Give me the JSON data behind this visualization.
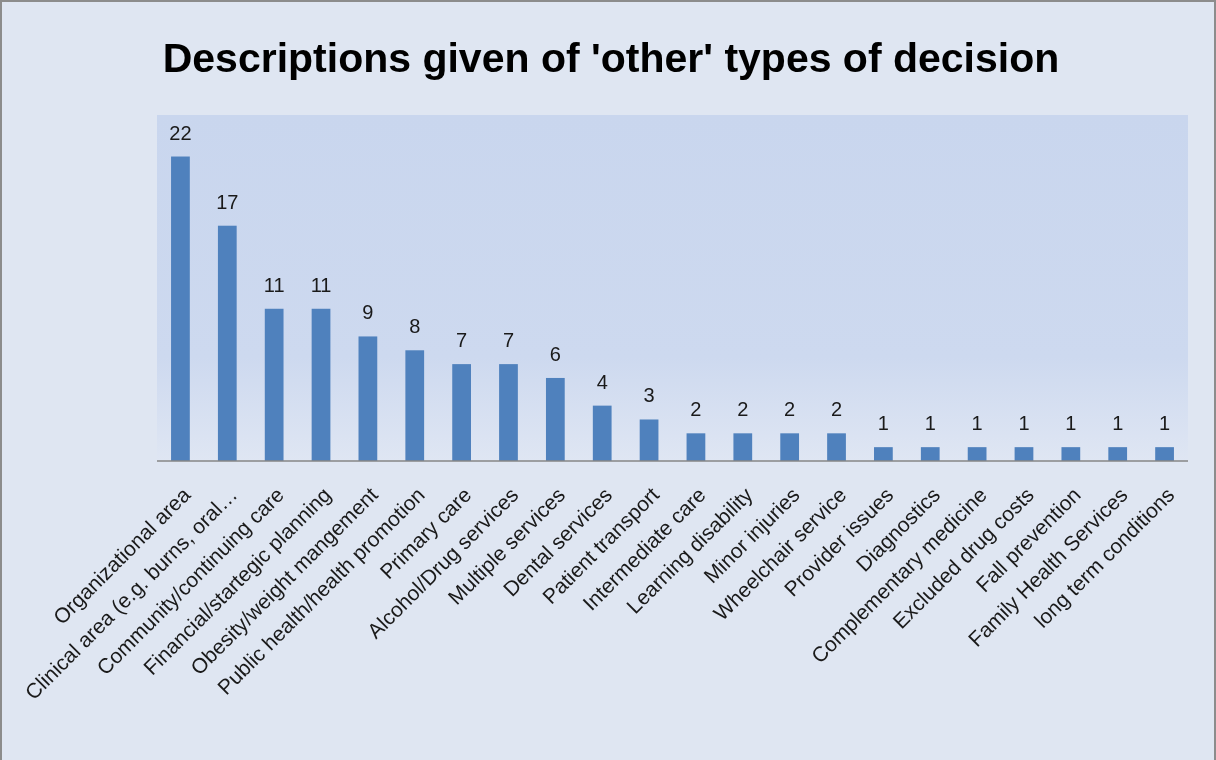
{
  "chart_data": {
    "type": "bar",
    "title": "Descriptions given of 'other' types of decision",
    "categories": [
      "Organizational area",
      "Clinical area (e.g. burns, oral…",
      "Community/continuing care",
      "Financial/startegic planning",
      "Obesity/weight mangement",
      "Public health/health promotion",
      "Primary care",
      "Alcohol/Drug services",
      "Multiple services",
      "Dental services",
      "Patient transport",
      "Intermediate care",
      "Learning disability",
      "Minor injuries",
      "Wheelchair service",
      "Provider issues",
      "Diagnostics",
      "Complementary medicine",
      "Excluded drug costs",
      "Fall prevention",
      "Family Health Services",
      "long term conditions"
    ],
    "values": [
      22,
      17,
      11,
      11,
      9,
      8,
      7,
      7,
      6,
      4,
      3,
      2,
      2,
      2,
      2,
      1,
      1,
      1,
      1,
      1,
      1,
      1
    ],
    "color": "#4f81bd",
    "ylim": [
      0,
      25
    ],
    "tick_labels": "x",
    "data_labels": true
  }
}
